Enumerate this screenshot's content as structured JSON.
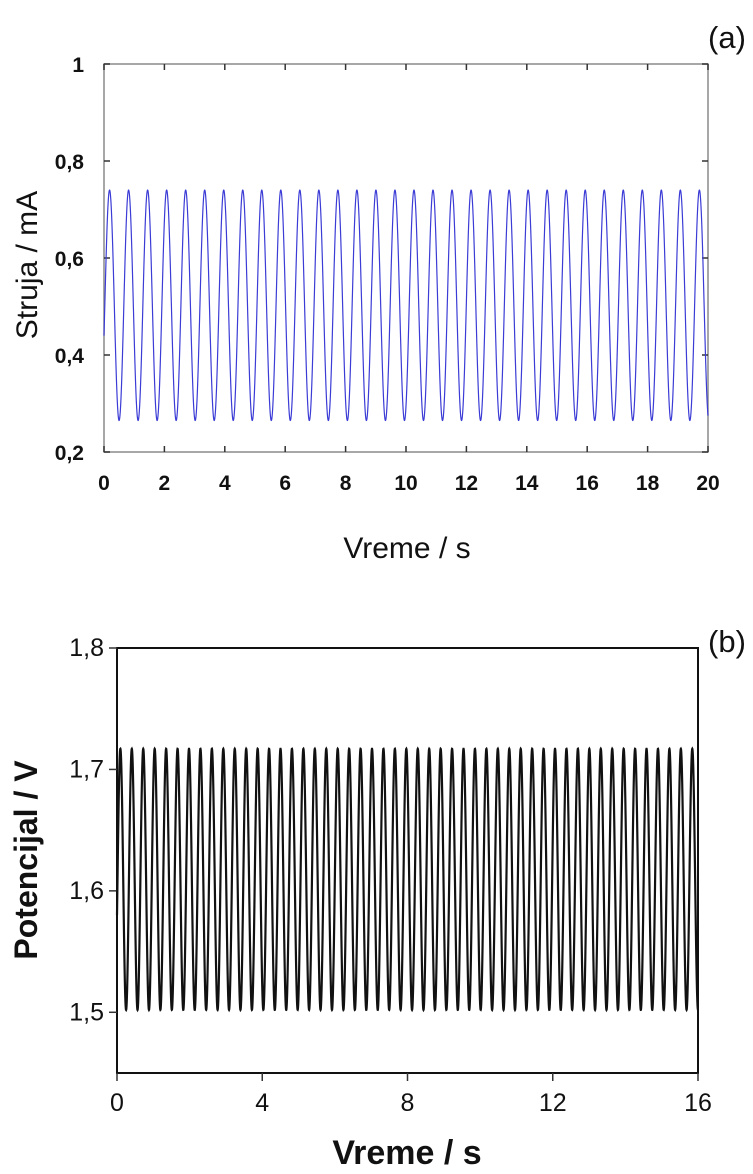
{
  "chart_data": [
    {
      "panel_label": "(a)",
      "type": "line",
      "xlabel": "Vreme / s",
      "ylabel": "Struja / mA",
      "xlim": [
        0,
        20
      ],
      "ylim": [
        0.2,
        1.0
      ],
      "xticks": [
        0,
        2,
        4,
        6,
        8,
        10,
        12,
        14,
        16,
        18,
        20
      ],
      "xtick_labels": [
        "0",
        "2",
        "4",
        "6",
        "8",
        "10",
        "12",
        "14",
        "16",
        "18",
        "20"
      ],
      "yticks": [
        0.2,
        0.4,
        0.6,
        0.8,
        1.0
      ],
      "ytick_labels": [
        "0,2",
        "0,4",
        "0,6",
        "0,8",
        "1"
      ],
      "grid": false,
      "series": [
        {
          "color": "#3b3bd6",
          "signal": "periodic oscillation",
          "period": 0.63,
          "min": 0.265,
          "max": 0.74,
          "start_value": 0.44,
          "x_range": [
            0,
            20
          ]
        }
      ]
    },
    {
      "panel_label": "(b)",
      "type": "line",
      "xlabel": "Vreme / s",
      "ylabel": "Potencijal / V",
      "xlim": [
        0,
        16
      ],
      "ylim": [
        1.45,
        1.8
      ],
      "xticks": [
        0,
        4,
        8,
        12,
        16
      ],
      "xtick_labels": [
        "0",
        "4",
        "8",
        "12",
        "16"
      ],
      "yticks": [
        1.5,
        1.6,
        1.7,
        1.8
      ],
      "ytick_labels": [
        "1,5",
        "1,6",
        "1,7",
        "1,8"
      ],
      "grid": false,
      "series": [
        {
          "color": "#111111",
          "signal": "periodic oscillation",
          "period": 0.315,
          "min": 1.502,
          "max": 1.717,
          "start_value": 1.58,
          "x_range": [
            0,
            16
          ]
        }
      ]
    }
  ]
}
